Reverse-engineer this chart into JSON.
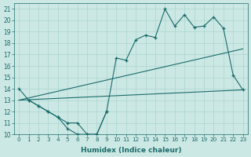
{
  "xlabel": "Humidex (Indice chaleur)",
  "bg_color": "#cce8e4",
  "grid_color": "#aad4cf",
  "line_color": "#1a6b6b",
  "xlim": [
    -0.5,
    23.5
  ],
  "ylim": [
    10,
    21.5
  ],
  "xticks": [
    0,
    1,
    2,
    3,
    4,
    5,
    6,
    7,
    8,
    9,
    10,
    11,
    12,
    13,
    14,
    15,
    16,
    17,
    18,
    19,
    20,
    21,
    22,
    23
  ],
  "yticks": [
    10,
    11,
    12,
    13,
    14,
    15,
    16,
    17,
    18,
    19,
    20,
    21
  ],
  "series": [
    {
      "x": [
        0,
        1,
        2,
        3,
        4,
        5,
        6,
        7,
        8,
        9
      ],
      "y": [
        14,
        13,
        12.5,
        12,
        11.5,
        10.5,
        10,
        10,
        10,
        12
      ],
      "marker": true
    },
    {
      "x": [
        1,
        2,
        3,
        4,
        5,
        6,
        7,
        8,
        9,
        10,
        11,
        12,
        13,
        14,
        15,
        16,
        17,
        18,
        19,
        20,
        21,
        22,
        23
      ],
      "y": [
        13,
        12.5,
        12,
        11.5,
        11,
        11,
        10,
        10,
        12,
        16.7,
        16.5,
        18.3,
        18.7,
        18.5,
        21,
        19.5,
        20.5,
        19.4,
        19.5,
        20.3,
        19.3,
        15.2,
        13.9
      ],
      "marker": true
    },
    {
      "x": [
        0,
        23
      ],
      "y": [
        13,
        13.9
      ],
      "marker": false
    },
    {
      "x": [
        0,
        23
      ],
      "y": [
        13,
        17.5
      ],
      "marker": false
    }
  ]
}
